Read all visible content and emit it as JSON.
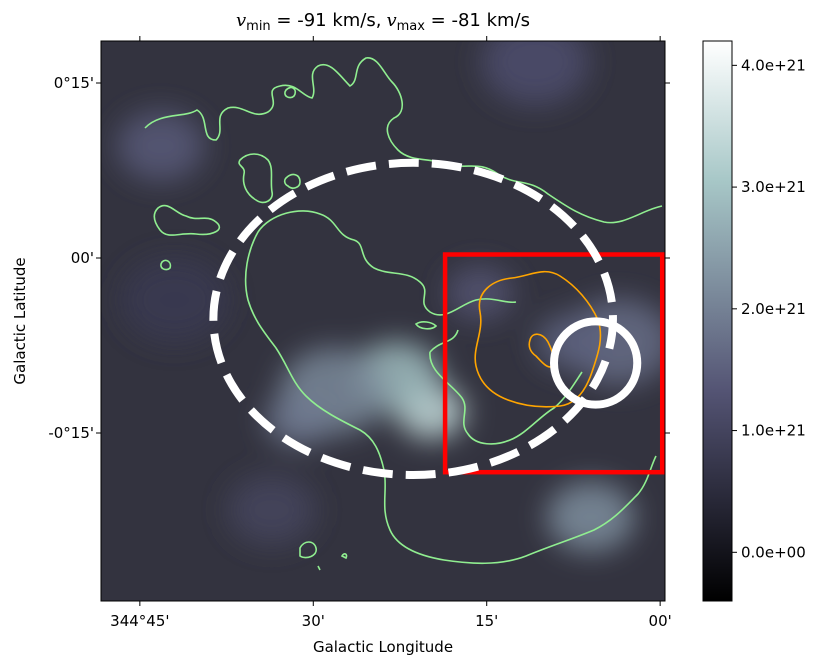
{
  "chart_data": {
    "type": "heatmap",
    "title": {
      "v_min_symbol": "v",
      "v_min_sub": "min",
      "v_min_value": " = -91 km/s,",
      "v_max_symbol": "v",
      "v_max_sub": "max",
      "v_max_value": " = -81 km/s"
    },
    "xlabel": "Galactic Longitude",
    "ylabel": "Galactic Latitude",
    "x_ticks": [
      {
        "value": 344.75,
        "label": "344°45'"
      },
      {
        "value": 344.5,
        "label": "30'"
      },
      {
        "value": 344.25,
        "label": "15'"
      },
      {
        "value": 344.0,
        "label": "00'"
      }
    ],
    "y_ticks": [
      {
        "value": 0.25,
        "label": "0°15'"
      },
      {
        "value": 0.0,
        "label": "00'"
      },
      {
        "value": -0.25,
        "label": "-0°15'"
      }
    ],
    "xlim": [
      344.806,
      343.993
    ],
    "ylim": [
      -0.49,
      0.31
    ],
    "colorbar": {
      "min": -4e+20,
      "max": 4.2e+21,
      "colormap": "bone",
      "ticks": [
        {
          "value": 0.0,
          "label": "0.0e+00"
        },
        {
          "value": 1e+21,
          "label": "1.0e+21"
        },
        {
          "value": 2e+21,
          "label": "2.0e+21"
        },
        {
          "value": 3e+21,
          "label": "3.0e+21"
        },
        {
          "value": 4e+21,
          "label": "4.0e+21"
        }
      ]
    },
    "emission_peaks": [
      {
        "l": 344.33,
        "b": -0.22,
        "value": 3.4e+21
      },
      {
        "l": 344.38,
        "b": -0.17,
        "value": 2.9e+21
      },
      {
        "l": 344.47,
        "b": -0.19,
        "value": 2.1e+21
      },
      {
        "l": 344.52,
        "b": -0.23,
        "value": 1.9e+21
      },
      {
        "l": 344.1,
        "b": -0.37,
        "value": 2.2e+21
      },
      {
        "l": 344.06,
        "b": -0.12,
        "value": 1.7e+21
      },
      {
        "l": 344.13,
        "b": -0.12,
        "value": 1.5e+21
      },
      {
        "l": 344.72,
        "b": 0.16,
        "value": 1.4e+21
      },
      {
        "l": 344.18,
        "b": 0.28,
        "value": 1.2e+21
      },
      {
        "l": 344.26,
        "b": -0.05,
        "value": 1.3e+21
      },
      {
        "l": 344.56,
        "b": -0.36,
        "value": 1e+21
      },
      {
        "l": 344.7,
        "b": -0.06,
        "value": 8e+20
      }
    ],
    "overlays": {
      "dashed_ellipse": {
        "color": "#ffffff",
        "center_l": 344.356,
        "center_b": -0.087,
        "semi_axis_l": 0.288,
        "semi_axis_b": 0.223
      },
      "circle": {
        "color": "#ffffff",
        "center_l": 344.093,
        "center_b": -0.15,
        "radius_l": 0.06
      },
      "box": {
        "color": "#ff0000",
        "l_min": 343.997,
        "l_max": 344.31,
        "b_min": -0.306,
        "b_max": 0.005
      },
      "contour_green": {
        "color": "#90ee90"
      },
      "contour_orange": {
        "color": "#ffa500"
      }
    }
  }
}
